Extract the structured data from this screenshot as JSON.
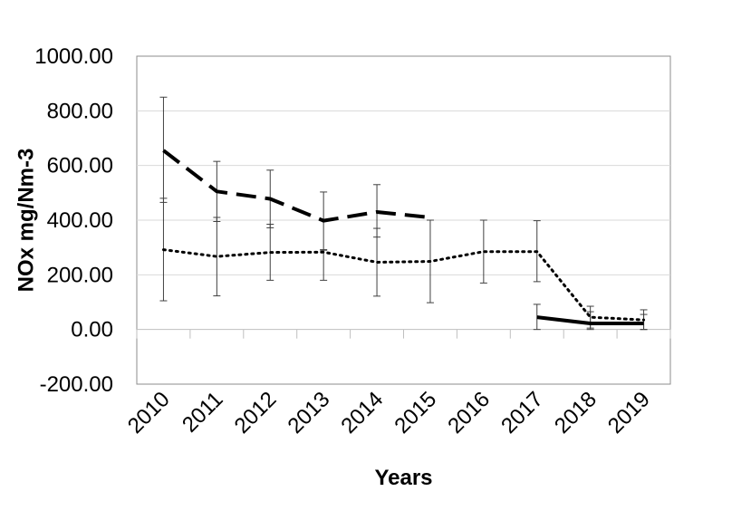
{
  "chart_data": {
    "type": "line",
    "title": "",
    "xlabel": "Years",
    "ylabel": "NOx mg/Nm-3",
    "categories": [
      "2010",
      "2011",
      "2012",
      "2013",
      "2014",
      "2015",
      "2016",
      "2017",
      "2018",
      "2019"
    ],
    "y_tick_labels": [
      "1000.00",
      "800.00",
      "600.00",
      "400.00",
      "200.00",
      "0.00",
      "-200.00"
    ],
    "ylim": [
      -200,
      1000
    ],
    "y_ticks": [
      1000,
      800,
      600,
      400,
      200,
      0,
      -200
    ],
    "grid": true,
    "legend": "none",
    "series": [
      {
        "style": "dashed",
        "color": "#000000",
        "values": [
          655,
          505,
          478,
          398,
          430,
          410,
          null,
          null,
          null,
          null
        ],
        "error_high": [
          850,
          615,
          583,
          503,
          530,
          410,
          null,
          null,
          null,
          null
        ],
        "error_low": [
          465,
          395,
          372,
          292,
          338,
          410,
          null,
          null,
          null,
          null
        ]
      },
      {
        "style": "dotted",
        "color": "#000000",
        "values": [
          292,
          267,
          282,
          283,
          246,
          249,
          285,
          285,
          45,
          35
        ],
        "error_high": [
          480,
          410,
          385,
          290,
          370,
          400,
          400,
          398,
          85,
          72
        ],
        "error_low": [
          105,
          123,
          180,
          180,
          122,
          98,
          170,
          175,
          5,
          0
        ]
      },
      {
        "style": "solid",
        "color": "#000000",
        "values": [
          null,
          null,
          null,
          null,
          null,
          null,
          null,
          45,
          22,
          22
        ],
        "error_high": [
          null,
          null,
          null,
          null,
          null,
          null,
          null,
          92,
          65,
          55
        ],
        "error_low": [
          null,
          null,
          null,
          null,
          null,
          null,
          null,
          0,
          0,
          0
        ]
      }
    ]
  }
}
